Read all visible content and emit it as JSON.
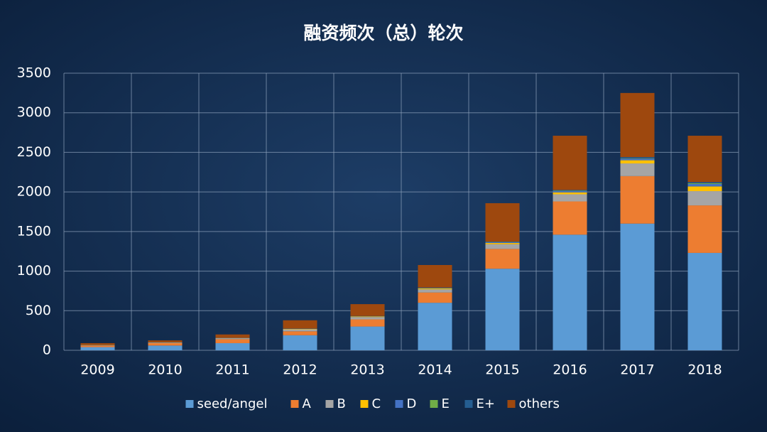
{
  "chart_data": {
    "type": "stacked_bar",
    "title": "融资频次（总）轮次",
    "categories": [
      "2009",
      "2010",
      "2011",
      "2012",
      "2013",
      "2014",
      "2015",
      "2016",
      "2017",
      "2018"
    ],
    "series": [
      {
        "name": "seed/angel",
        "color": "#5b9bd5",
        "values": [
          40,
          60,
          90,
          190,
          300,
          600,
          1030,
          1460,
          1600,
          1230
        ]
      },
      {
        "name": "A",
        "color": "#ed7d31",
        "values": [
          20,
          30,
          50,
          50,
          90,
          130,
          250,
          420,
          600,
          600
        ]
      },
      {
        "name": "B",
        "color": "#a5a5a5",
        "values": [
          5,
          8,
          12,
          25,
          30,
          40,
          60,
          90,
          160,
          180
        ]
      },
      {
        "name": "C",
        "color": "#ffc000",
        "values": [
          2,
          2,
          3,
          5,
          8,
          12,
          15,
          25,
          40,
          60
        ]
      },
      {
        "name": "D",
        "color": "#4472c4",
        "values": [
          1,
          1,
          2,
          2,
          3,
          5,
          10,
          15,
          20,
          30
        ]
      },
      {
        "name": "E",
        "color": "#70ad47",
        "values": [
          0,
          0,
          0,
          1,
          1,
          2,
          3,
          5,
          5,
          10
        ]
      },
      {
        "name": "E+",
        "color": "#255e91",
        "values": [
          0,
          0,
          0,
          1,
          1,
          3,
          5,
          10,
          15,
          15
        ]
      },
      {
        "name": "others",
        "color": "#9e480e",
        "values": [
          22,
          24,
          43,
          105,
          150,
          285,
          485,
          685,
          810,
          585
        ]
      }
    ],
    "ylim": [
      0,
      3500
    ],
    "yticks": [
      0,
      500,
      1000,
      1500,
      2000,
      2500,
      3000,
      3500
    ],
    "grid": true
  }
}
